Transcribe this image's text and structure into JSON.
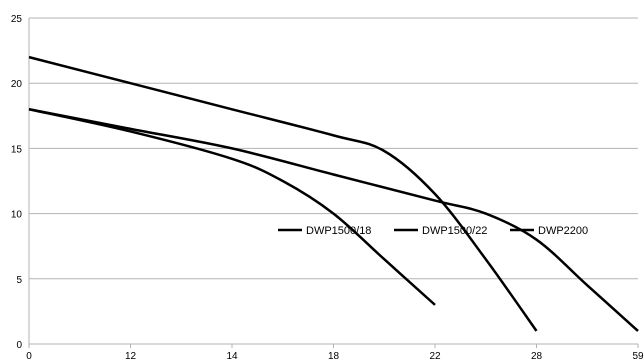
{
  "chart_data": {
    "type": "line",
    "title": "",
    "xlabel": "",
    "ylabel": "",
    "x_categories": [
      "0",
      "12",
      "14",
      "18",
      "22",
      "28",
      "59"
    ],
    "ylim": [
      0,
      25
    ],
    "yticks": [
      "0",
      "5",
      "10",
      "15",
      "20",
      "25"
    ],
    "grid": "horizontal",
    "legend_position": "inside-right",
    "series": [
      {
        "name": "DWP1500/18",
        "color": "#000000",
        "points": [
          [
            0,
            18
          ],
          [
            1,
            16.3
          ],
          [
            2,
            14.2
          ],
          [
            2.5,
            12.5
          ],
          [
            3,
            10
          ],
          [
            3.5,
            6.5
          ],
          [
            4,
            3
          ]
        ]
      },
      {
        "name": "DWP1500/22",
        "color": "#000000",
        "points": [
          [
            0,
            22
          ],
          [
            1,
            20
          ],
          [
            2,
            18
          ],
          [
            3,
            16
          ],
          [
            3.5,
            14.8
          ],
          [
            4,
            11.5
          ],
          [
            4.5,
            6.5
          ],
          [
            5,
            1
          ]
        ]
      },
      {
        "name": "DWP2200",
        "color": "#000000",
        "points": [
          [
            0,
            18
          ],
          [
            1,
            16.5
          ],
          [
            2,
            15
          ],
          [
            3,
            13
          ],
          [
            4,
            11
          ],
          [
            4.5,
            10
          ],
          [
            5,
            8
          ],
          [
            5.5,
            4.5
          ],
          [
            6,
            1
          ]
        ]
      }
    ]
  }
}
